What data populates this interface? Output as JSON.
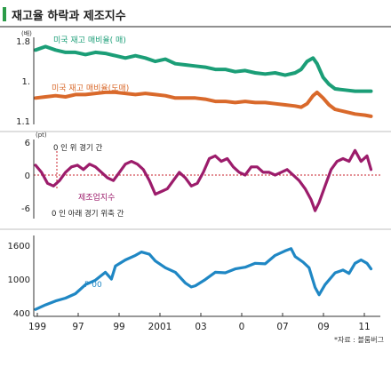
{
  "title": "재고율 하락과 제조지수",
  "source": "*자료 : 블룸버그",
  "x_ticks": [
    "199",
    "97",
    "99",
    "2001",
    "03",
    "0",
    "07",
    "09",
    "11"
  ],
  "colors": {
    "accent_bar": "#2b9b48",
    "teal": "#1b9e77",
    "orange": "#d9692b",
    "magenta": "#9c1c6b",
    "blue": "#1f87c4",
    "zero_line": "#c8222b",
    "axis": "#222222",
    "separator": "#bfbfbf"
  },
  "chart_data": [
    {
      "type": "line",
      "panel": "inventory-ratio",
      "unit": "(배)",
      "y_ticks": [
        "1.8",
        "1.",
        "1.1"
      ],
      "ylim": [
        1.1,
        1.8
      ],
      "x_range": [
        1995.0,
        2012.0
      ],
      "series": [
        {
          "name": "미국 재고   매비율(   매)",
          "color": "#1b9e77",
          "x": [
            1995.0,
            1995.5,
            1996.0,
            1996.5,
            1997.0,
            1997.5,
            1998.0,
            1998.5,
            1999.0,
            1999.5,
            2000.0,
            2000.5,
            2001.0,
            2001.5,
            2002.0,
            2002.5,
            2003.0,
            2003.5,
            2004.0,
            2004.5,
            2005.0,
            2005.5,
            2006.0,
            2006.5,
            2007.0,
            2007.5,
            2008.0,
            2008.3,
            2008.6,
            2008.9,
            2009.1,
            2009.4,
            2009.7,
            2010.0,
            2010.5,
            2011.0,
            2011.5,
            2011.8
          ],
          "values": [
            1.72,
            1.75,
            1.72,
            1.7,
            1.7,
            1.68,
            1.7,
            1.69,
            1.67,
            1.65,
            1.67,
            1.65,
            1.62,
            1.64,
            1.6,
            1.59,
            1.58,
            1.57,
            1.55,
            1.55,
            1.53,
            1.54,
            1.52,
            1.51,
            1.52,
            1.5,
            1.52,
            1.55,
            1.62,
            1.65,
            1.6,
            1.48,
            1.42,
            1.38,
            1.37,
            1.36,
            1.36,
            1.36
          ]
        },
        {
          "name": "미국 재고   매비율(도매)",
          "color": "#d9692b",
          "x": [
            1995.0,
            1995.5,
            1996.0,
            1996.5,
            1997.0,
            1997.5,
            1998.0,
            1998.5,
            1999.0,
            1999.5,
            2000.0,
            2000.5,
            2001.0,
            2001.5,
            2002.0,
            2002.5,
            2003.0,
            2003.5,
            2004.0,
            2004.5,
            2005.0,
            2005.5,
            2006.0,
            2006.5,
            2007.0,
            2007.5,
            2008.0,
            2008.3,
            2008.6,
            2008.9,
            2009.1,
            2009.4,
            2009.7,
            2010.0,
            2010.5,
            2011.0,
            2011.5,
            2011.8
          ],
          "values": [
            1.3,
            1.31,
            1.32,
            1.31,
            1.33,
            1.33,
            1.34,
            1.35,
            1.35,
            1.34,
            1.33,
            1.34,
            1.33,
            1.32,
            1.3,
            1.3,
            1.3,
            1.29,
            1.27,
            1.27,
            1.26,
            1.27,
            1.26,
            1.26,
            1.25,
            1.24,
            1.23,
            1.22,
            1.25,
            1.32,
            1.35,
            1.3,
            1.24,
            1.2,
            1.18,
            1.16,
            1.15,
            1.14
          ]
        }
      ]
    },
    {
      "type": "line",
      "panel": "manufacturing-index",
      "unit": "(pt)",
      "y_ticks": [
        "6",
        "0",
        "-6"
      ],
      "ylim": [
        -6,
        6
      ],
      "x_range": [
        1995.0,
        2012.0
      ],
      "annotation_top": "0   인   위 경기         간",
      "annotation_bottom": "0   인   아래 경기 위축     간",
      "series": [
        {
          "name": "제조업지수",
          "color": "#9c1c6b",
          "x": [
            1995.0,
            1995.3,
            1995.6,
            1995.9,
            1996.2,
            1996.5,
            1996.8,
            1997.1,
            1997.4,
            1997.7,
            1998.0,
            1998.3,
            1998.6,
            1998.9,
            1999.2,
            1999.5,
            1999.8,
            2000.1,
            2000.4,
            2000.7,
            2001.0,
            2001.3,
            2001.6,
            2001.9,
            2002.2,
            2002.5,
            2002.8,
            2003.1,
            2003.4,
            2003.7,
            2004.0,
            2004.3,
            2004.6,
            2004.9,
            2005.2,
            2005.5,
            2005.8,
            2006.1,
            2006.4,
            2006.7,
            2007.0,
            2007.3,
            2007.6,
            2007.9,
            2008.2,
            2008.5,
            2008.8,
            2009.0,
            2009.2,
            2009.5,
            2009.8,
            2010.1,
            2010.4,
            2010.7,
            2011.0,
            2011.3,
            2011.6,
            2011.8
          ],
          "values": [
            1.8,
            0.5,
            -1.5,
            -2.0,
            -1.0,
            0.5,
            1.5,
            1.8,
            1.0,
            2.0,
            1.5,
            0.5,
            -0.5,
            -1.0,
            0.5,
            2.0,
            2.5,
            2.0,
            1.0,
            -1.0,
            -3.5,
            -3.0,
            -2.5,
            -1.0,
            0.5,
            -0.5,
            -2.0,
            -1.5,
            0.5,
            3.0,
            3.5,
            2.5,
            3.0,
            1.5,
            0.5,
            0.0,
            1.5,
            1.5,
            0.5,
            0.5,
            0.0,
            0.5,
            1.0,
            0.0,
            -1.0,
            -2.5,
            -4.5,
            -6.5,
            -5.0,
            -2.0,
            1.0,
            2.5,
            3.0,
            2.5,
            4.5,
            2.5,
            3.5,
            1.0
          ]
        }
      ]
    },
    {
      "type": "line",
      "panel": "sp500",
      "y_ticks": [
        "1600",
        "1000",
        "400"
      ],
      "ylim": [
        400,
        1600
      ],
      "x_range": [
        1995.0,
        2012.0
      ],
      "series": [
        {
          "name": "P 00",
          "color": "#1f87c4",
          "x": [
            1995.0,
            1995.5,
            1996.0,
            1996.5,
            1997.0,
            1997.5,
            1998.0,
            1998.5,
            1998.8,
            1999.0,
            1999.5,
            2000.0,
            2000.3,
            2000.7,
            2001.0,
            2001.5,
            2002.0,
            2002.5,
            2002.8,
            2003.0,
            2003.5,
            2004.0,
            2004.5,
            2005.0,
            2005.5,
            2006.0,
            2006.5,
            2007.0,
            2007.5,
            2007.8,
            2008.0,
            2008.4,
            2008.7,
            2009.0,
            2009.2,
            2009.5,
            2010.0,
            2010.4,
            2010.7,
            2011.0,
            2011.3,
            2011.6,
            2011.8
          ],
          "values": [
            460,
            540,
            610,
            660,
            740,
            900,
            980,
            1120,
            1000,
            1230,
            1340,
            1420,
            1480,
            1440,
            1320,
            1200,
            1120,
            930,
            860,
            880,
            990,
            1120,
            1110,
            1180,
            1210,
            1280,
            1270,
            1420,
            1500,
            1540,
            1400,
            1300,
            1200,
            850,
            720,
            900,
            1110,
            1160,
            1100,
            1280,
            1340,
            1280,
            1180
          ]
        }
      ]
    }
  ]
}
